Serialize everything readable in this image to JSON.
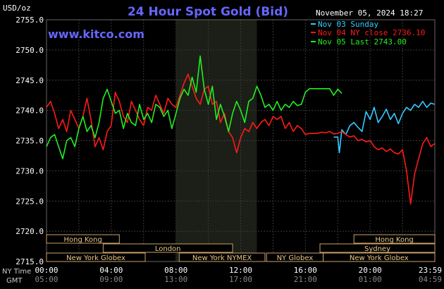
{
  "header": {
    "currency": "USD/oz",
    "title": "24 Hour Spot Gold (Bid)",
    "timestamp": "November 05, 2024 18:27",
    "site": "www.kitco.com"
  },
  "legend": [
    {
      "label": "Nov 03 Sunday",
      "color": "#33ccff"
    },
    {
      "label": "Nov 04 NY close 2736.10",
      "color": "#ff1a1a"
    },
    {
      "label": "Nov 05 Last 2743.00",
      "color": "#22ee22"
    }
  ],
  "axis": {
    "ny_time_label": "NY Time",
    "gmt_label": "GMT",
    "ny_ticks": [
      "00:00",
      "04:00",
      "08:00",
      "12:00",
      "16:00",
      "20:00",
      "23:59"
    ],
    "gmt_ticks": [
      "05:00",
      "09:00",
      "13:00",
      "17:00",
      "21:00",
      "01:00",
      "04:59"
    ],
    "y_ticks": [
      "2755.0",
      "2750.0",
      "2745.0",
      "2740.0",
      "2735.0",
      "2730.0",
      "2725.0",
      "2720.0",
      "2715.0"
    ]
  },
  "sessions": {
    "hong_kong_left": "Hong Kong",
    "london": "London",
    "new_york_globex_left": "New York Globex",
    "new_york_nymex": "New York NYMEX",
    "ny_globex": "NY Globex",
    "hong_kong_right": "Hong Kong",
    "sydney": "Sydney",
    "new_york_globex_right": "New York Globex"
  },
  "chart_data": {
    "type": "line",
    "title": "24 Hour Spot Gold (Bid)",
    "ylabel": "USD/oz",
    "xlabel": "NY Time",
    "ylim": [
      2715,
      2755
    ],
    "xlim": [
      0,
      24
    ],
    "grid": true,
    "series": [
      {
        "name": "Nov 03 Sunday",
        "color": "#33ccff",
        "x": [
          17.75,
          18.0,
          18.1,
          18.25,
          18.5,
          18.75,
          19.0,
          19.25,
          19.5,
          19.75,
          20.0,
          20.25,
          20.5,
          20.75,
          21.0,
          21.25,
          21.5,
          21.75,
          22.0,
          22.25,
          22.5,
          22.75,
          23.0,
          23.25,
          23.5,
          23.75,
          23.98
        ],
        "y": [
          2735.6,
          2735.6,
          2733.0,
          2736.8,
          2736.0,
          2737.5,
          2738.0,
          2737.2,
          2736.5,
          2739.8,
          2738.5,
          2740.5,
          2738.0,
          2739.0,
          2740.2,
          2738.5,
          2739.5,
          2737.8,
          2739.5,
          2740.5,
          2740.0,
          2741.0,
          2740.5,
          2741.5,
          2740.5,
          2741.2,
          2741.0
        ]
      },
      {
        "name": "Nov 04 NY close 2736.10",
        "color": "#ff1a1a",
        "x": [
          0.0,
          0.25,
          0.5,
          0.75,
          1.0,
          1.25,
          1.5,
          1.75,
          2.0,
          2.25,
          2.5,
          2.75,
          3.0,
          3.25,
          3.5,
          3.75,
          4.0,
          4.25,
          4.5,
          4.75,
          5.0,
          5.25,
          5.5,
          5.75,
          6.0,
          6.25,
          6.5,
          6.75,
          7.0,
          7.25,
          7.5,
          7.75,
          8.0,
          8.25,
          8.5,
          8.75,
          9.0,
          9.25,
          9.5,
          9.75,
          10.0,
          10.25,
          10.5,
          10.75,
          11.0,
          11.25,
          11.5,
          11.75,
          12.0,
          12.25,
          12.5,
          12.75,
          13.0,
          13.25,
          13.5,
          13.75,
          14.0,
          14.25,
          14.5,
          14.75,
          15.0,
          15.25,
          15.5,
          15.75,
          16.0,
          16.25,
          16.5,
          16.75,
          17.0,
          17.25,
          17.5,
          17.75,
          18.0,
          18.25,
          18.5,
          18.75,
          19.0,
          19.25,
          19.5,
          19.75,
          20.0,
          20.25,
          20.5,
          20.75,
          21.0,
          21.25,
          21.5,
          21.75,
          22.0,
          22.25,
          22.5,
          22.75,
          23.0,
          23.25,
          23.5,
          23.75,
          23.98
        ],
        "y": [
          2740.5,
          2741.5,
          2739.5,
          2737.0,
          2738.5,
          2736.5,
          2740.0,
          2738.5,
          2737.0,
          2739.0,
          2742.0,
          2738.5,
          2734.0,
          2735.5,
          2733.5,
          2736.5,
          2737.5,
          2743.0,
          2741.5,
          2739.0,
          2738.0,
          2741.5,
          2740.0,
          2738.5,
          2737.5,
          2740.5,
          2740.0,
          2742.5,
          2741.0,
          2739.5,
          2742.0,
          2741.0,
          2740.5,
          2742.5,
          2744.5,
          2746.0,
          2744.0,
          2742.0,
          2741.0,
          2743.5,
          2744.0,
          2741.0,
          2741.5,
          2738.0,
          2739.5,
          2736.5,
          2735.5,
          2733.0,
          2735.5,
          2737.0,
          2736.5,
          2738.0,
          2737.0,
          2738.0,
          2738.5,
          2737.5,
          2739.0,
          2738.5,
          2739.0,
          2737.0,
          2738.0,
          2736.5,
          2737.5,
          2737.0,
          2736.0,
          2736.2,
          2736.2,
          2736.2,
          2736.4,
          2736.3,
          2736.5,
          2736.1,
          2736.2,
          2736.5,
          2736.0,
          2735.6,
          2735.8,
          2735.0,
          2735.2,
          2734.8,
          2735.0,
          2734.0,
          2733.5,
          2733.8,
          2733.2,
          2733.6,
          2733.0,
          2732.8,
          2733.5,
          2730.0,
          2724.5,
          2729.5,
          2732.0,
          2734.5,
          2735.5,
          2734.0,
          2734.5
        ]
      },
      {
        "name": "Nov 05 Last 2743.00",
        "color": "#22ee22",
        "x": [
          0.0,
          0.25,
          0.5,
          0.75,
          1.0,
          1.25,
          1.5,
          1.75,
          2.0,
          2.25,
          2.5,
          2.75,
          3.0,
          3.25,
          3.5,
          3.75,
          4.0,
          4.25,
          4.5,
          4.75,
          5.0,
          5.25,
          5.5,
          5.75,
          6.0,
          6.25,
          6.5,
          6.75,
          7.0,
          7.25,
          7.5,
          7.75,
          8.0,
          8.25,
          8.5,
          8.75,
          9.0,
          9.25,
          9.5,
          9.75,
          10.0,
          10.25,
          10.5,
          10.75,
          11.0,
          11.25,
          11.5,
          11.75,
          12.0,
          12.25,
          12.5,
          12.75,
          13.0,
          13.25,
          13.5,
          13.75,
          14.0,
          14.25,
          14.5,
          14.75,
          15.0,
          15.25,
          15.5,
          15.75,
          16.0,
          16.25,
          16.5,
          16.75,
          17.0,
          17.25,
          17.5,
          17.75,
          18.0,
          18.25
        ],
        "y": [
          2734.0,
          2735.5,
          2736.0,
          2734.0,
          2732.0,
          2735.0,
          2735.5,
          2734.0,
          2737.0,
          2739.0,
          2736.5,
          2737.5,
          2735.5,
          2738.0,
          2742.0,
          2743.5,
          2741.5,
          2739.5,
          2740.0,
          2737.0,
          2739.5,
          2738.0,
          2737.5,
          2741.0,
          2738.5,
          2739.5,
          2738.0,
          2741.0,
          2740.5,
          2739.0,
          2740.0,
          2737.0,
          2739.5,
          2742.0,
          2743.5,
          2742.5,
          2745.5,
          2743.0,
          2749.0,
          2743.5,
          2741.0,
          2744.0,
          2738.5,
          2741.0,
          2739.0,
          2736.5,
          2739.5,
          2741.5,
          2740.0,
          2738.0,
          2741.5,
          2742.0,
          2744.0,
          2742.5,
          2740.5,
          2741.0,
          2740.0,
          2741.5,
          2740.0,
          2741.0,
          2740.5,
          2741.5,
          2740.8,
          2741.0,
          2743.0,
          2743.6,
          2743.6,
          2743.6,
          2743.6,
          2743.6,
          2743.6,
          2742.5,
          2743.5,
          2742.8
        ]
      }
    ],
    "shaded_region": [
      8.0,
      13.0
    ]
  }
}
